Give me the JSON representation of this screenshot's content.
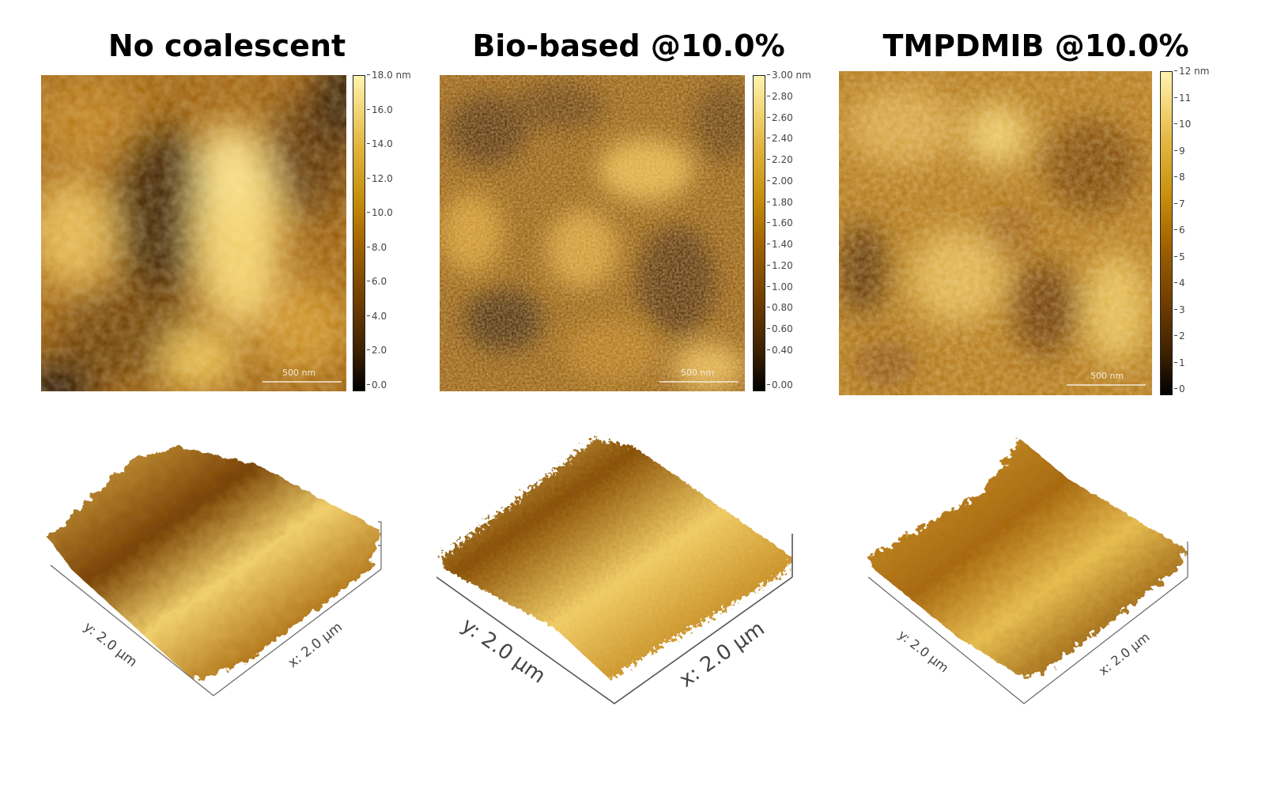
{
  "panels": [
    {
      "title": "No coalescent",
      "scale_label": "500 nm",
      "colorbar_ticks": [
        "18.0 nm",
        "16.0",
        "14.0",
        "12.0",
        "10.0",
        "8.0",
        "6.0",
        "4.0",
        "2.0",
        "0.0"
      ],
      "y_axis_label": "y: 2.0 µm",
      "x_axis_label": "x: 2.0 µm"
    },
    {
      "title": "Bio-based @10.0%",
      "scale_label": "500 nm",
      "colorbar_ticks": [
        "3.00 nm",
        "2.80",
        "2.60",
        "2.40",
        "2.20",
        "2.00",
        "1.80",
        "1.60",
        "1.40",
        "1.20",
        "1.00",
        "0.80",
        "0.60",
        "0.40",
        "0.00"
      ],
      "y_axis_label": "y: 2.0 µm",
      "x_axis_label": "x: 2.0 µm"
    },
    {
      "title": "TMPDMIB @10.0%",
      "scale_label": "500 nm",
      "colorbar_ticks": [
        "12 nm",
        "11",
        "10",
        "9",
        "8",
        "7",
        "6",
        "5",
        "4",
        "3",
        "2",
        "1",
        "0"
      ],
      "y_axis_label": "y: 2.0 µm",
      "x_axis_label": "x: 2.0 µm"
    }
  ],
  "colors": {
    "afm_dark": "#1a0a00",
    "afm_mid": "#a86a10",
    "afm_light": "#f6df88"
  }
}
